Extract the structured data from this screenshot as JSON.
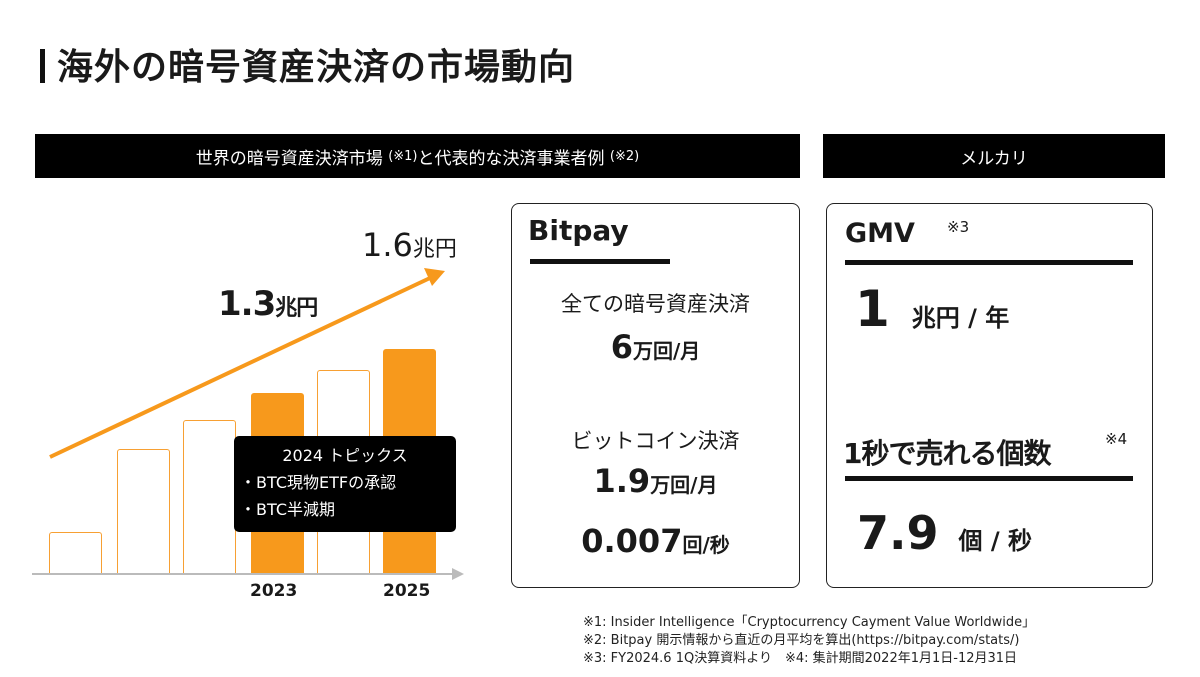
{
  "title": "海外の暗号資産決済の市場動向",
  "left_header": {
    "main": "世界の暗号資産決済市場",
    "note1": "(※1)",
    "mid": "と代表的な決済事業者例",
    "note2": "(※2)"
  },
  "right_header": "メルカリ",
  "chart": {
    "value_2023": "1.3",
    "value_2025": "1.6",
    "unit": "兆円",
    "x_labels": [
      "2023",
      "2025"
    ],
    "accent": "#f7991c"
  },
  "topics": {
    "title": "2024 トピックス",
    "items": [
      "・BTC現物ETFの承認",
      "・BTC半減期"
    ]
  },
  "bitpay": {
    "name": "Bitpay",
    "all_label": "全ての暗号資産決済",
    "all_value": "6",
    "all_unit": "万回/月",
    "btc_label": "ビットコイン決済",
    "btc_value": "1.9",
    "btc_unit": "万回/月",
    "btc_sec_value": "0.007",
    "btc_sec_unit": "回/秒"
  },
  "mercari": {
    "gmv_label": "GMV",
    "gmv_note": "※3",
    "gmv_value": "1",
    "gmv_unit": "兆円 / 年",
    "sold_label": "1秒で売れる個数",
    "sold_note": "※4",
    "sold_value": "7.9",
    "sold_unit": "個 / 秒"
  },
  "footnotes": [
    "※1: Insider Intelligence「Cryptocurrency Cayment Value Worldwide」",
    "※2: Bitpay 開示情報から直近の月平均を算出(https://bitpay.com/stats/)",
    "※3: FY2024.6 1Q決算資料より　※4: 集計期間2022年1月1日-12月31日"
  ]
}
